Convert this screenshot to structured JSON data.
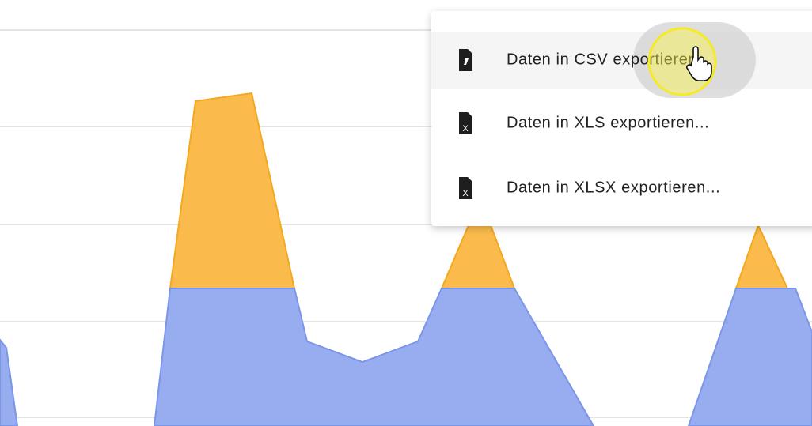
{
  "menu": {
    "items": [
      {
        "label": "Daten in CSV exportieren..."
      },
      {
        "label": "Daten in XLS exportieren..."
      },
      {
        "label": "Daten in XLSX exportieren..."
      }
    ]
  }
}
